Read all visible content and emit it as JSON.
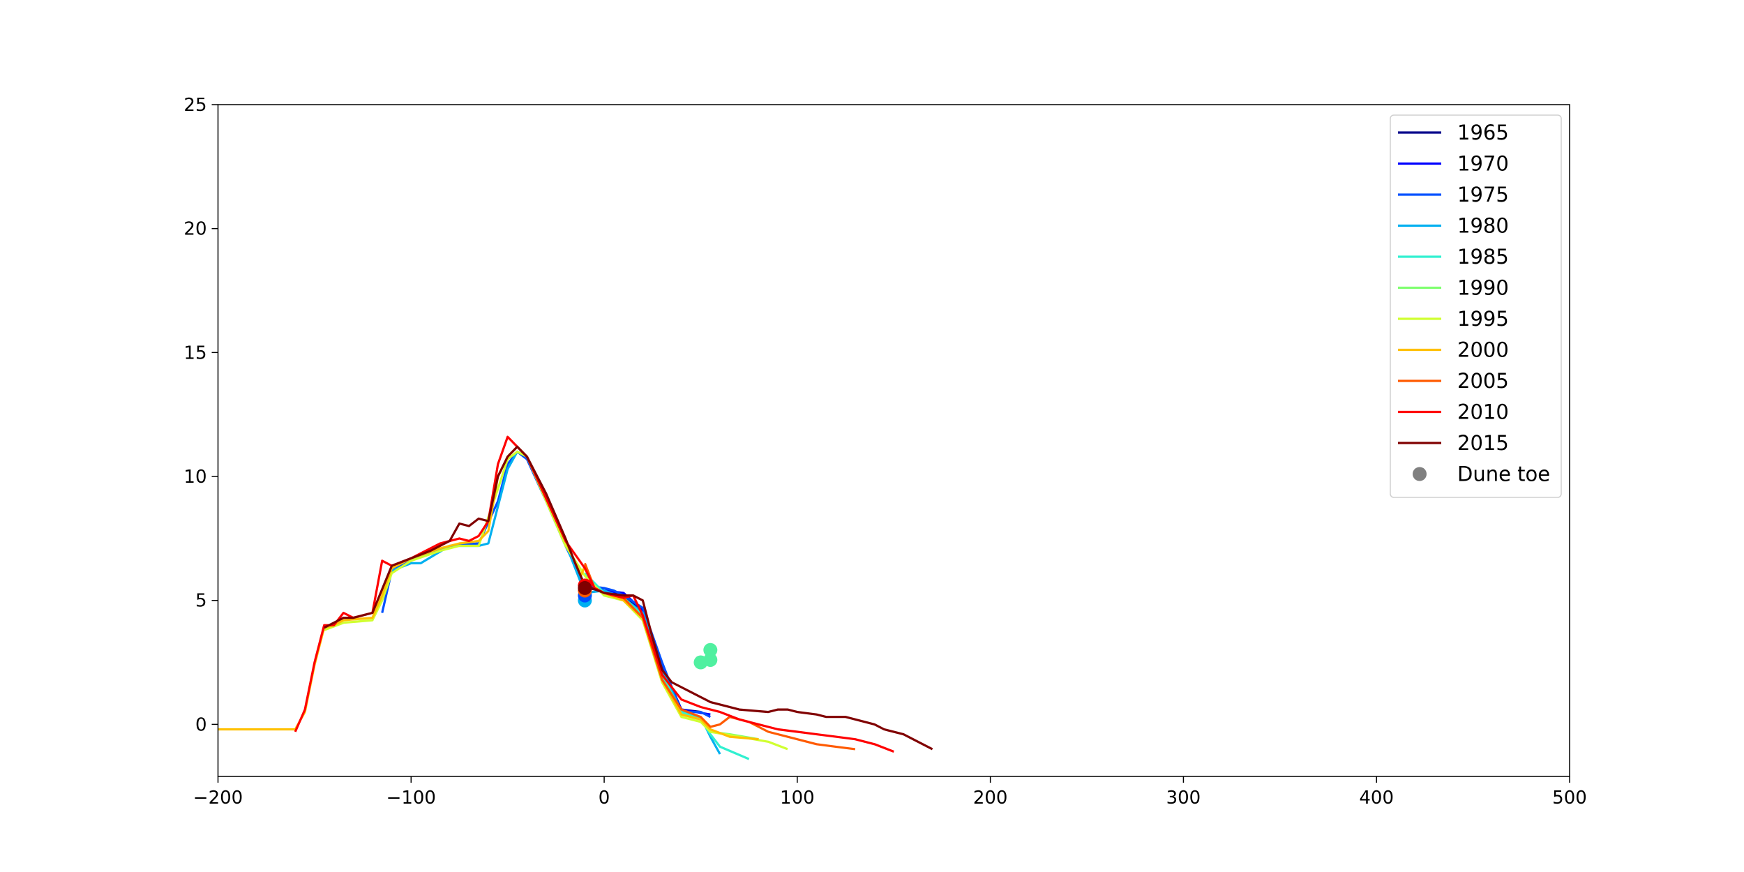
{
  "chart_data": {
    "type": "line",
    "title": "",
    "xlabel": "",
    "ylabel": "",
    "xlim": [
      -200,
      500
    ],
    "ylim": [
      -2.1,
      25
    ],
    "xticks": [
      "−200",
      "−100",
      "0",
      "100",
      "200",
      "300",
      "400",
      "500"
    ],
    "xtick_values": [
      -200,
      -100,
      0,
      100,
      200,
      300,
      400,
      500
    ],
    "yticks": [
      "0",
      "5",
      "10",
      "15",
      "20",
      "25"
    ],
    "ytick_values": [
      0,
      5,
      10,
      15,
      20,
      25
    ],
    "grid": false,
    "legend_position": "top-right",
    "series": [
      {
        "name": "1965",
        "color": "#00008b",
        "points": [
          [
            -10,
            5.5
          ],
          [
            0,
            5.4
          ],
          [
            10,
            5.2
          ],
          [
            20,
            4.5
          ],
          [
            30,
            2.3
          ],
          [
            40,
            0.6
          ],
          [
            50,
            0.5
          ]
        ]
      },
      {
        "name": "1970",
        "color": "#0000ff",
        "points": [
          [
            -10,
            5.6
          ],
          [
            0,
            5.4
          ],
          [
            10,
            5.3
          ],
          [
            20,
            4.6
          ],
          [
            30,
            2.4
          ],
          [
            40,
            0.6
          ],
          [
            55,
            0.4
          ]
        ]
      },
      {
        "name": "1975",
        "color": "#0050ff",
        "points": [
          [
            -115,
            4.5
          ],
          [
            -110,
            6.2
          ],
          [
            -100,
            6.6
          ],
          [
            -80,
            7.2
          ],
          [
            -65,
            7.3
          ],
          [
            -55,
            9.0
          ],
          [
            -50,
            10.5
          ],
          [
            -45,
            11.0
          ],
          [
            -40,
            10.7
          ],
          [
            -30,
            9.0
          ],
          [
            -20,
            7.2
          ],
          [
            -10,
            5.6
          ],
          [
            0,
            5.5
          ],
          [
            5,
            5.4
          ],
          [
            10,
            5.2
          ],
          [
            20,
            4.7
          ],
          [
            30,
            2.5
          ],
          [
            40,
            0.5
          ],
          [
            50,
            0.5
          ],
          [
            55,
            0.3
          ]
        ]
      },
      {
        "name": "1980",
        "color": "#00b0f0",
        "points": [
          [
            -110,
            6.2
          ],
          [
            -100,
            6.5
          ],
          [
            -95,
            6.5
          ],
          [
            -80,
            7.2
          ],
          [
            -65,
            7.2
          ],
          [
            -60,
            7.3
          ],
          [
            -50,
            10.3
          ],
          [
            -45,
            11.0
          ],
          [
            -40,
            10.8
          ],
          [
            -30,
            9.1
          ],
          [
            -20,
            7.3
          ],
          [
            -10,
            5.3
          ],
          [
            0,
            5.4
          ],
          [
            10,
            5.1
          ],
          [
            20,
            4.5
          ],
          [
            30,
            2.2
          ],
          [
            40,
            0.5
          ],
          [
            50,
            0.3
          ],
          [
            55,
            -0.5
          ],
          [
            60,
            -1.2
          ]
        ]
      },
      {
        "name": "1985",
        "color": "#30f0d0",
        "points": [
          [
            -10,
            6.1
          ],
          [
            0,
            5.3
          ],
          [
            10,
            5.1
          ],
          [
            20,
            4.4
          ],
          [
            30,
            2.0
          ],
          [
            40,
            0.5
          ],
          [
            50,
            0.2
          ],
          [
            55,
            -0.4
          ],
          [
            60,
            -0.9
          ],
          [
            75,
            -1.4
          ]
        ]
      },
      {
        "name": "1990",
        "color": "#80ff70",
        "points": [
          [
            -10,
            6.0
          ],
          [
            0,
            5.2
          ],
          [
            10,
            5.0
          ],
          [
            20,
            4.3
          ],
          [
            30,
            1.8
          ],
          [
            40,
            0.4
          ],
          [
            50,
            0.2
          ],
          [
            55,
            -0.3
          ],
          [
            65,
            -0.4
          ],
          [
            80,
            -0.6
          ]
        ]
      },
      {
        "name": "1995",
        "color": "#d0ff30",
        "points": [
          [
            -145,
            3.8
          ],
          [
            -135,
            4.1
          ],
          [
            -120,
            4.2
          ],
          [
            -115,
            5.0
          ],
          [
            -110,
            6.1
          ],
          [
            -100,
            6.6
          ],
          [
            -85,
            7.0
          ],
          [
            -75,
            7.2
          ],
          [
            -65,
            7.2
          ],
          [
            -55,
            9.5
          ],
          [
            -50,
            10.7
          ],
          [
            -45,
            11.0
          ],
          [
            -40,
            10.8
          ],
          [
            -30,
            9.0
          ],
          [
            -20,
            7.2
          ],
          [
            -10,
            6.0
          ],
          [
            0,
            5.2
          ],
          [
            10,
            5.0
          ],
          [
            20,
            4.2
          ],
          [
            30,
            1.7
          ],
          [
            40,
            0.3
          ],
          [
            50,
            0.1
          ],
          [
            55,
            -0.3
          ],
          [
            70,
            -0.5
          ],
          [
            85,
            -0.7
          ],
          [
            95,
            -1.0
          ]
        ]
      },
      {
        "name": "2000",
        "color": "#ffc000",
        "points": [
          [
            -200,
            -0.2
          ],
          [
            -190,
            -0.2
          ],
          [
            -180,
            -0.2
          ],
          [
            -170,
            -0.2
          ],
          [
            -160,
            -0.2
          ],
          [
            -155,
            0.5
          ],
          [
            -150,
            2.4
          ],
          [
            -145,
            3.9
          ],
          [
            -140,
            4.0
          ],
          [
            -135,
            4.2
          ],
          [
            -120,
            4.3
          ],
          [
            -115,
            5.2
          ],
          [
            -110,
            6.3
          ],
          [
            -100,
            6.7
          ],
          [
            -85,
            7.1
          ],
          [
            -75,
            7.3
          ],
          [
            -65,
            7.4
          ],
          [
            -60,
            7.8
          ],
          [
            -55,
            10.0
          ],
          [
            -50,
            10.8
          ],
          [
            -45,
            11.2
          ],
          [
            -40,
            10.8
          ],
          [
            -30,
            9.2
          ],
          [
            -20,
            7.4
          ],
          [
            -12,
            6.0
          ],
          [
            -10,
            6.4
          ],
          [
            -5,
            5.5
          ],
          [
            0,
            5.3
          ],
          [
            10,
            5.0
          ],
          [
            20,
            4.3
          ],
          [
            30,
            1.8
          ],
          [
            40,
            0.4
          ],
          [
            50,
            0.2
          ],
          [
            55,
            -0.2
          ],
          [
            65,
            -0.5
          ],
          [
            80,
            -0.6
          ]
        ]
      },
      {
        "name": "2005",
        "color": "#ff5a00",
        "points": [
          [
            -10,
            6.5
          ],
          [
            -5,
            5.5
          ],
          [
            0,
            5.3
          ],
          [
            10,
            5.1
          ],
          [
            20,
            4.3
          ],
          [
            30,
            1.8
          ],
          [
            40,
            0.6
          ],
          [
            50,
            0.3
          ],
          [
            55,
            -0.1
          ],
          [
            60,
            0.0
          ],
          [
            65,
            0.3
          ],
          [
            75,
            0.1
          ],
          [
            85,
            -0.3
          ],
          [
            100,
            -0.6
          ],
          [
            110,
            -0.8
          ],
          [
            120,
            -0.9
          ],
          [
            130,
            -1.0
          ]
        ]
      },
      {
        "name": "2010",
        "color": "#ff0000",
        "points": [
          [
            -160,
            -0.3
          ],
          [
            -155,
            0.6
          ],
          [
            -150,
            2.5
          ],
          [
            -145,
            4.0
          ],
          [
            -140,
            4.0
          ],
          [
            -135,
            4.5
          ],
          [
            -130,
            4.3
          ],
          [
            -120,
            4.5
          ],
          [
            -115,
            6.6
          ],
          [
            -110,
            6.4
          ],
          [
            -100,
            6.7
          ],
          [
            -85,
            7.3
          ],
          [
            -75,
            7.5
          ],
          [
            -70,
            7.4
          ],
          [
            -65,
            7.6
          ],
          [
            -60,
            8.2
          ],
          [
            -55,
            10.5
          ],
          [
            -50,
            11.6
          ],
          [
            -45,
            11.2
          ],
          [
            -40,
            10.8
          ],
          [
            -30,
            9.1
          ],
          [
            -20,
            7.4
          ],
          [
            -10,
            6.3
          ],
          [
            -5,
            5.5
          ],
          [
            0,
            5.3
          ],
          [
            10,
            5.1
          ],
          [
            15,
            5.2
          ],
          [
            20,
            4.4
          ],
          [
            30,
            2.0
          ],
          [
            40,
            1.0
          ],
          [
            50,
            0.7
          ],
          [
            60,
            0.5
          ],
          [
            70,
            0.2
          ],
          [
            80,
            0.0
          ],
          [
            90,
            -0.2
          ],
          [
            100,
            -0.3
          ],
          [
            110,
            -0.4
          ],
          [
            120,
            -0.5
          ],
          [
            130,
            -0.6
          ],
          [
            140,
            -0.8
          ],
          [
            150,
            -1.1
          ]
        ]
      },
      {
        "name": "2015",
        "color": "#800000",
        "points": [
          [
            -145,
            3.9
          ],
          [
            -140,
            4.1
          ],
          [
            -135,
            4.3
          ],
          [
            -130,
            4.3
          ],
          [
            -120,
            4.5
          ],
          [
            -110,
            6.4
          ],
          [
            -100,
            6.7
          ],
          [
            -90,
            7.0
          ],
          [
            -80,
            7.4
          ],
          [
            -75,
            8.1
          ],
          [
            -70,
            8.0
          ],
          [
            -65,
            8.3
          ],
          [
            -60,
            8.2
          ],
          [
            -55,
            10.0
          ],
          [
            -50,
            10.8
          ],
          [
            -45,
            11.2
          ],
          [
            -40,
            10.8
          ],
          [
            -30,
            9.3
          ],
          [
            -20,
            7.5
          ],
          [
            -15,
            6.5
          ],
          [
            -10,
            5.6
          ],
          [
            0,
            5.3
          ],
          [
            10,
            5.2
          ],
          [
            15,
            5.2
          ],
          [
            20,
            5.0
          ],
          [
            25,
            3.5
          ],
          [
            30,
            2.2
          ],
          [
            35,
            1.7
          ],
          [
            45,
            1.3
          ],
          [
            50,
            1.1
          ],
          [
            55,
            0.9
          ],
          [
            60,
            0.8
          ],
          [
            70,
            0.6
          ],
          [
            85,
            0.5
          ],
          [
            90,
            0.6
          ],
          [
            95,
            0.6
          ],
          [
            100,
            0.5
          ],
          [
            110,
            0.4
          ],
          [
            115,
            0.3
          ],
          [
            120,
            0.3
          ],
          [
            125,
            0.3
          ],
          [
            135,
            0.1
          ],
          [
            140,
            0.0
          ],
          [
            145,
            -0.2
          ],
          [
            155,
            -0.4
          ],
          [
            160,
            -0.6
          ],
          [
            170,
            -1.0
          ]
        ]
      }
    ],
    "dune_toe": {
      "label": "Dune toe",
      "legend_color": "#808080",
      "points": [
        {
          "x": -10,
          "y": 5.0,
          "color": "#00b0f0"
        },
        {
          "x": -10,
          "y": 5.2,
          "color": "#0050ff"
        },
        {
          "x": -10,
          "y": 5.4,
          "color": "#ff5a00"
        },
        {
          "x": -10,
          "y": 5.6,
          "color": "#ff0000"
        },
        {
          "x": -10,
          "y": 5.5,
          "color": "#800000"
        },
        {
          "x": 50,
          "y": 2.5,
          "color": "#50f0a0"
        },
        {
          "x": 55,
          "y": 2.6,
          "color": "#50f0a0"
        },
        {
          "x": 55,
          "y": 3.0,
          "color": "#50f0a0"
        }
      ]
    }
  }
}
